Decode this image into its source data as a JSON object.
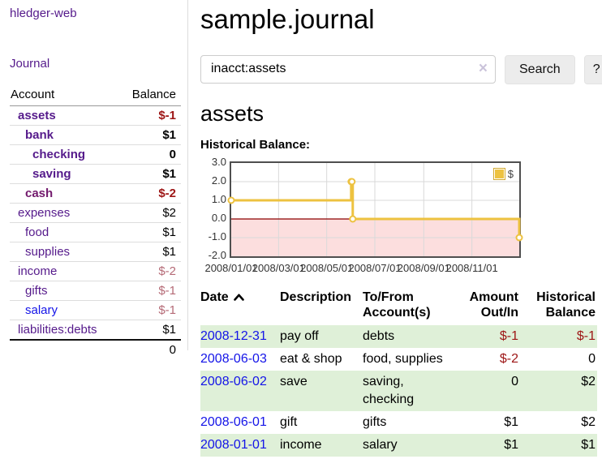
{
  "colors": {
    "account_purple": "#551a8b",
    "cash_purple": "#731a6d",
    "link_blue": "#1414e8",
    "negative_red": "#9d1515",
    "muted_negative": "#b56a76",
    "row_green": "#dff0d8",
    "series_gold": "#edc240",
    "zero_line": "#8b0000",
    "negative_region": "#fcdede",
    "grid_line": "#d9d9d9"
  },
  "sidebar": {
    "brand": "hledger-web",
    "journal_link": "Journal",
    "accounts_table": {
      "headers": {
        "account": "Account",
        "balance": "Balance"
      },
      "rows": [
        {
          "name": "assets",
          "depth": 0,
          "bold": true,
          "name_color": "#551a8b",
          "balance": "$-1",
          "balance_color": "#9d1515"
        },
        {
          "name": "bank",
          "depth": 1,
          "bold": true,
          "name_color": "#551a8b",
          "balance": "$1",
          "balance_color": "#000000"
        },
        {
          "name": "checking",
          "depth": 2,
          "bold": true,
          "name_color": "#551a8b",
          "balance": "0",
          "balance_color": "#000000"
        },
        {
          "name": "saving",
          "depth": 2,
          "bold": true,
          "name_color": "#551a8b",
          "balance": "$1",
          "balance_color": "#000000"
        },
        {
          "name": "cash",
          "depth": 1,
          "bold": true,
          "name_color": "#731a6d",
          "balance": "$-2",
          "balance_color": "#9d1515"
        },
        {
          "name": "expenses",
          "depth": 0,
          "bold": false,
          "name_color": "#551a8b",
          "balance": "$2",
          "balance_color": "#000000"
        },
        {
          "name": "food",
          "depth": 1,
          "bold": false,
          "name_color": "#551a8b",
          "balance": "$1",
          "balance_color": "#000000"
        },
        {
          "name": "supplies",
          "depth": 1,
          "bold": false,
          "name_color": "#551a8b",
          "balance": "$1",
          "balance_color": "#000000"
        },
        {
          "name": "income",
          "depth": 0,
          "bold": false,
          "name_color": "#551a8b",
          "balance": "$-2",
          "balance_color": "#b56a76"
        },
        {
          "name": "gifts",
          "depth": 1,
          "bold": false,
          "name_color": "#551a8b",
          "balance": "$-1",
          "balance_color": "#b56a76"
        },
        {
          "name": "salary",
          "depth": 1,
          "bold": false,
          "name_color": "#1414e8",
          "balance": "$-1",
          "balance_color": "#b56a76"
        },
        {
          "name": "liabilities:debts",
          "depth": 0,
          "bold": false,
          "name_color": "#551a8b",
          "balance": "$1",
          "balance_color": "#000000"
        }
      ],
      "total": "0"
    }
  },
  "header": {
    "title": "sample.journal"
  },
  "search": {
    "value": "inacct:assets",
    "clear_icon": "×",
    "button_label": "Search",
    "help_label": "?"
  },
  "account_page": {
    "heading": "assets",
    "chart_title": "Historical Balance:"
  },
  "chart_data": {
    "type": "line",
    "step": true,
    "title": "Historical Balance:",
    "legend": [
      {
        "name": "$",
        "color": "#edc240"
      }
    ],
    "series": [
      {
        "name": "$",
        "points": [
          {
            "date": "2008-01-01",
            "day": 0,
            "y": 1
          },
          {
            "date": "2008-06-01",
            "day": 152,
            "y": 2
          },
          {
            "date": "2008-06-02",
            "day": 153,
            "y": 2
          },
          {
            "date": "2008-06-03",
            "day": 154,
            "y": 0
          },
          {
            "date": "2008-12-31",
            "day": 365,
            "y": -1
          }
        ]
      }
    ],
    "x_ticks": [
      {
        "label": "2008/01/01",
        "day": 0
      },
      {
        "label": "2008/03/01",
        "day": 60
      },
      {
        "label": "2008/05/01",
        "day": 121
      },
      {
        "label": "2008/07/01",
        "day": 182
      },
      {
        "label": "2008/09/01",
        "day": 244
      },
      {
        "label": "2008/11/01",
        "day": 305
      }
    ],
    "y_ticks": [
      "3.0",
      "2.0",
      "1.0",
      "0.0",
      "-1.0",
      "-2.0"
    ],
    "ylim": [
      -2,
      3
    ],
    "xlim_days": [
      0,
      365
    ],
    "grid": true,
    "legend_position": "top-right",
    "negative_region_shaded": true
  },
  "register_table": {
    "headers": {
      "date": "Date",
      "description": "Description",
      "accounts": "To/From Account(s)",
      "amount": "Amount Out/In",
      "balance": "Historical Balance"
    },
    "sort": {
      "column": "date",
      "direction": "ascending"
    },
    "rows": [
      {
        "date": "2008-12-31",
        "description": "pay off",
        "accounts": "debts",
        "amount": "$-1",
        "amount_negative": true,
        "balance": "$-1",
        "balance_negative": true,
        "highlight": true
      },
      {
        "date": "2008-06-03",
        "description": "eat & shop",
        "accounts": "food, supplies",
        "amount": "$-2",
        "amount_negative": true,
        "balance": "0",
        "balance_negative": false,
        "highlight": false
      },
      {
        "date": "2008-06-02",
        "description": "save",
        "accounts": "saving, checking",
        "amount": "0",
        "amount_negative": false,
        "balance": "$2",
        "balance_negative": false,
        "highlight": true
      },
      {
        "date": "2008-06-01",
        "description": "gift",
        "accounts": "gifts",
        "amount": "$1",
        "amount_negative": false,
        "balance": "$2",
        "balance_negative": false,
        "highlight": false
      },
      {
        "date": "2008-01-01",
        "description": "income",
        "accounts": "salary",
        "amount": "$1",
        "amount_negative": false,
        "balance": "$1",
        "balance_negative": false,
        "highlight": true
      }
    ]
  }
}
